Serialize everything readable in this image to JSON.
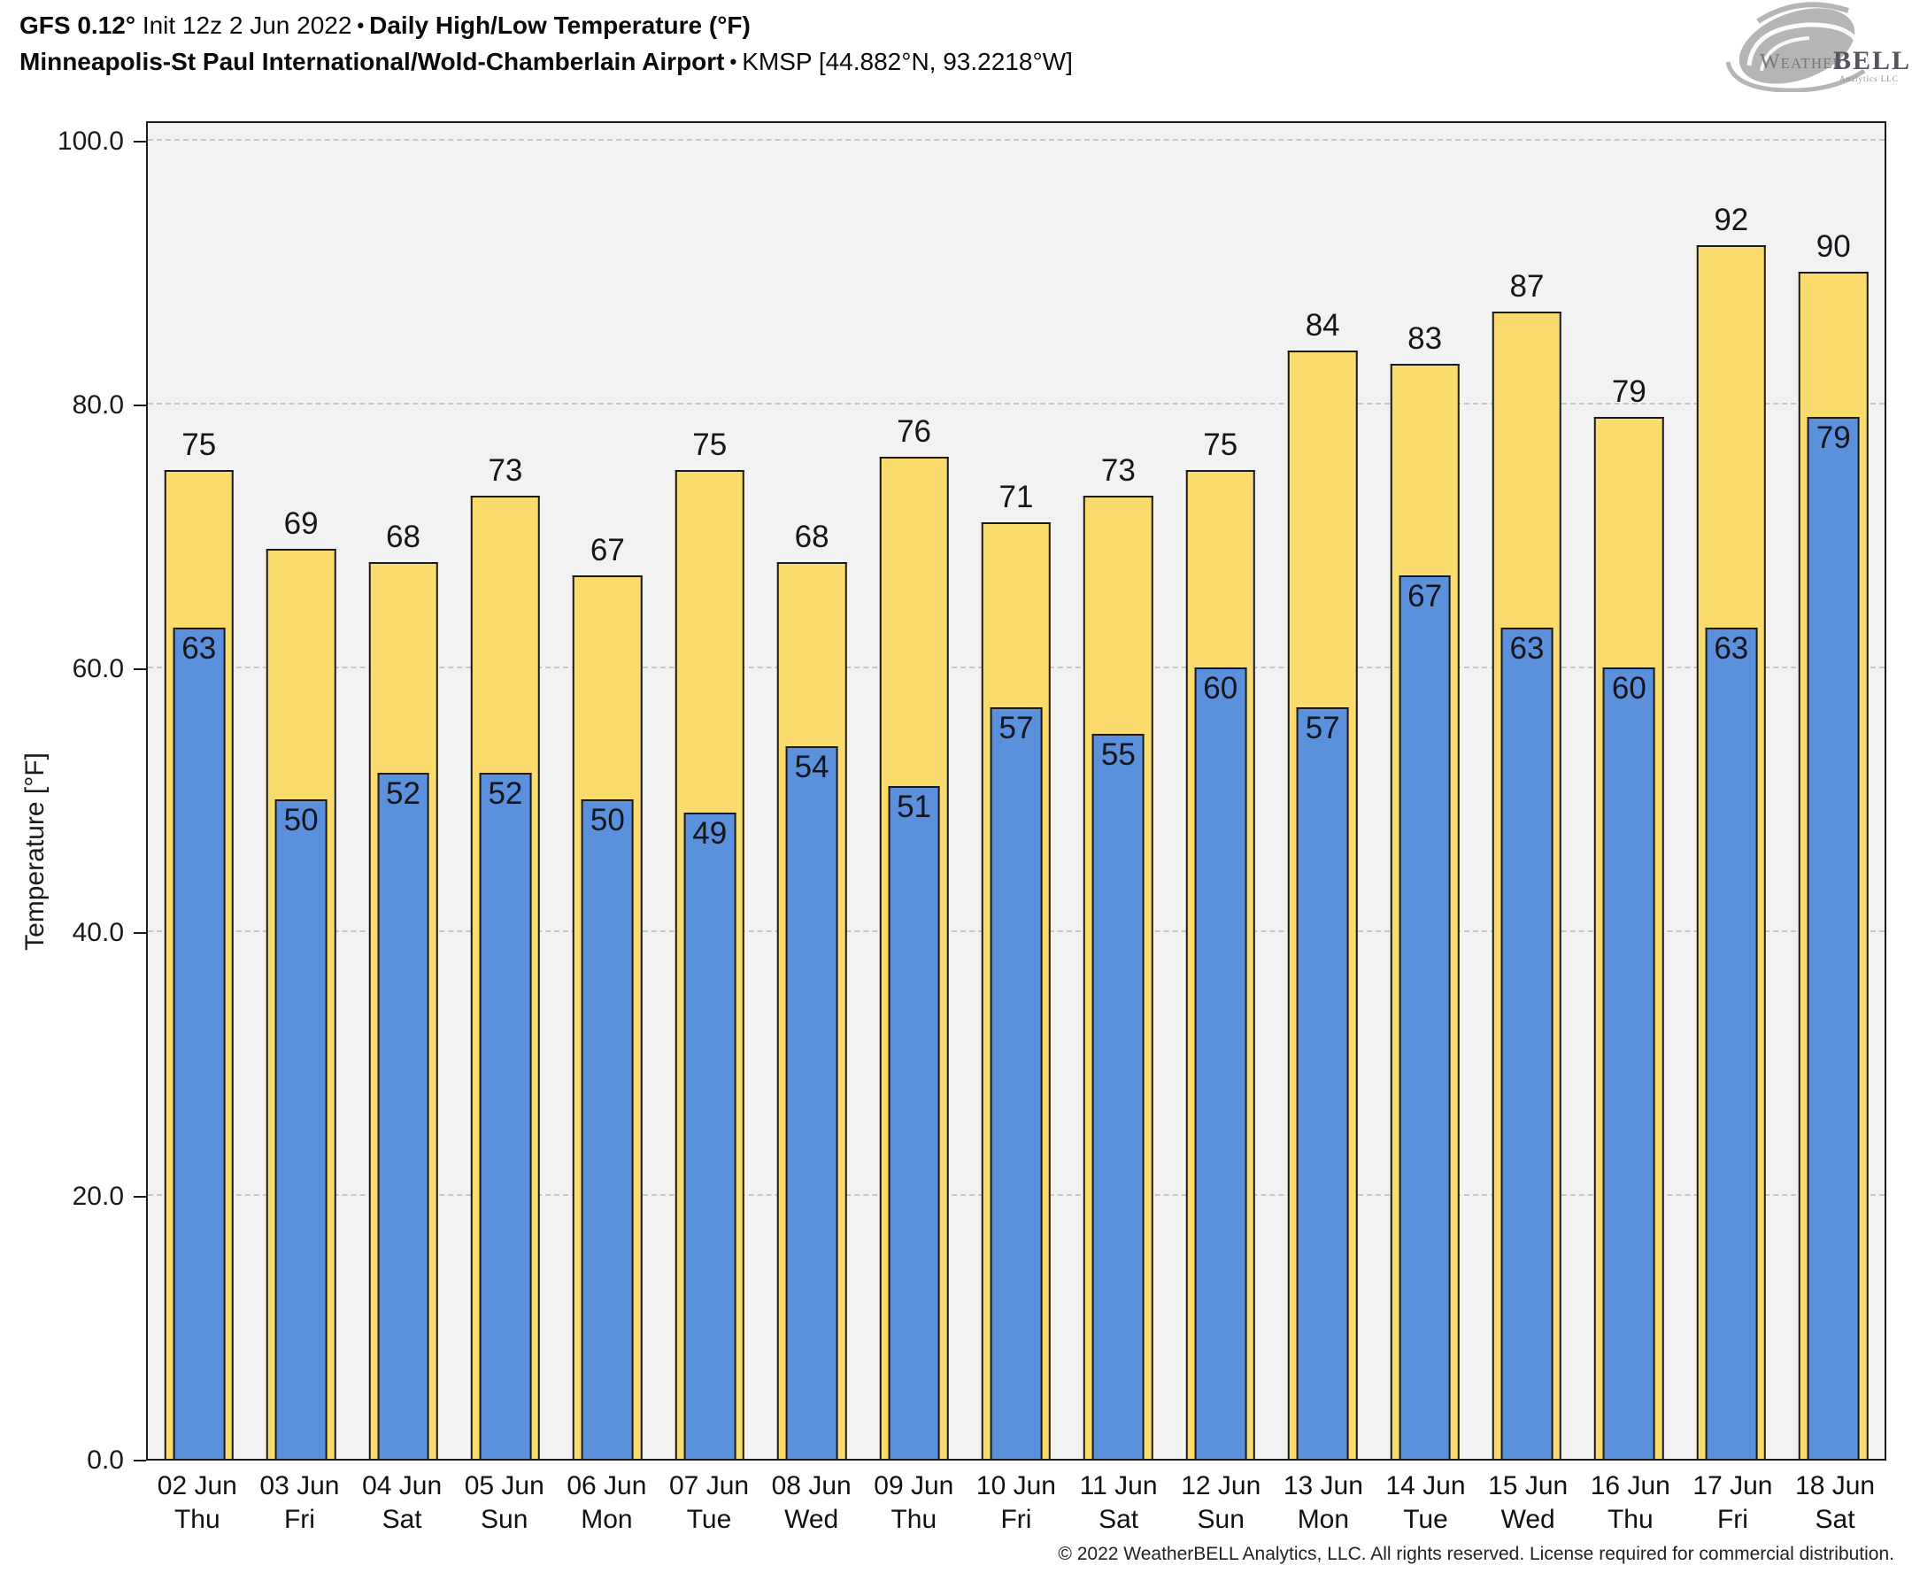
{
  "header": {
    "model": "GFS 0.12°",
    "init": "Init 12z 2 Jun 2022",
    "bullet": "•",
    "product": "Daily High/Low Temperature (°F)",
    "station": "Minneapolis-St Paul International/Wold-Chamberlain Airport",
    "station_meta": "KMSP [44.882°N, 93.2218°W]"
  },
  "logo": {
    "brand_weather": "Weather",
    "brand_bell": "BELL",
    "brand_sub": "Analytics LLC"
  },
  "chart_data": {
    "type": "bar",
    "title": "GFS 0.12° Init 12z 2 Jun 2022 • Daily High/Low Temperature (°F) • Minneapolis-St Paul International/Wold-Chamberlain Airport • KMSP [44.882°N, 93.2218°W]",
    "ylabel": "Temperature [°F]",
    "ylim": [
      0,
      100
    ],
    "yticks": [
      0,
      20,
      40,
      60,
      80,
      100
    ],
    "ytick_labels": [
      "0.0",
      "20.0",
      "40.0",
      "60.0",
      "80.0",
      "100.0"
    ],
    "grid": "horizontal dash-dot, light gray, plot background #f2f2f2",
    "legend_position": "none",
    "bar_style": "low bar nested inside high bar, black outlines, value labels: high above bar, low inside top of low bar",
    "categories": [
      {
        "date": "02 Jun",
        "day": "Thu"
      },
      {
        "date": "03 Jun",
        "day": "Fri"
      },
      {
        "date": "04 Jun",
        "day": "Sat"
      },
      {
        "date": "05 Jun",
        "day": "Sun"
      },
      {
        "date": "06 Jun",
        "day": "Mon"
      },
      {
        "date": "07 Jun",
        "day": "Tue"
      },
      {
        "date": "08 Jun",
        "day": "Wed"
      },
      {
        "date": "09 Jun",
        "day": "Thu"
      },
      {
        "date": "10 Jun",
        "day": "Fri"
      },
      {
        "date": "11 Jun",
        "day": "Sat"
      },
      {
        "date": "12 Jun",
        "day": "Sun"
      },
      {
        "date": "13 Jun",
        "day": "Mon"
      },
      {
        "date": "14 Jun",
        "day": "Tue"
      },
      {
        "date": "15 Jun",
        "day": "Wed"
      },
      {
        "date": "16 Jun",
        "day": "Thu"
      },
      {
        "date": "17 Jun",
        "day": "Fri"
      },
      {
        "date": "18 Jun",
        "day": "Sat"
      }
    ],
    "series": [
      {
        "name": "Daily High",
        "color": "#FADB6D",
        "values": [
          75,
          69,
          68,
          73,
          67,
          75,
          68,
          76,
          71,
          73,
          75,
          84,
          83,
          87,
          79,
          92,
          90
        ]
      },
      {
        "name": "Daily Low",
        "color": "#5B90DC",
        "values": [
          63,
          50,
          52,
          52,
          50,
          49,
          54,
          51,
          57,
          55,
          60,
          57,
          67,
          63,
          60,
          63,
          79
        ]
      }
    ]
  },
  "footer": {
    "copyright": "© 2022 WeatherBELL Analytics, LLC. All rights reserved. License required for commercial distribution."
  }
}
